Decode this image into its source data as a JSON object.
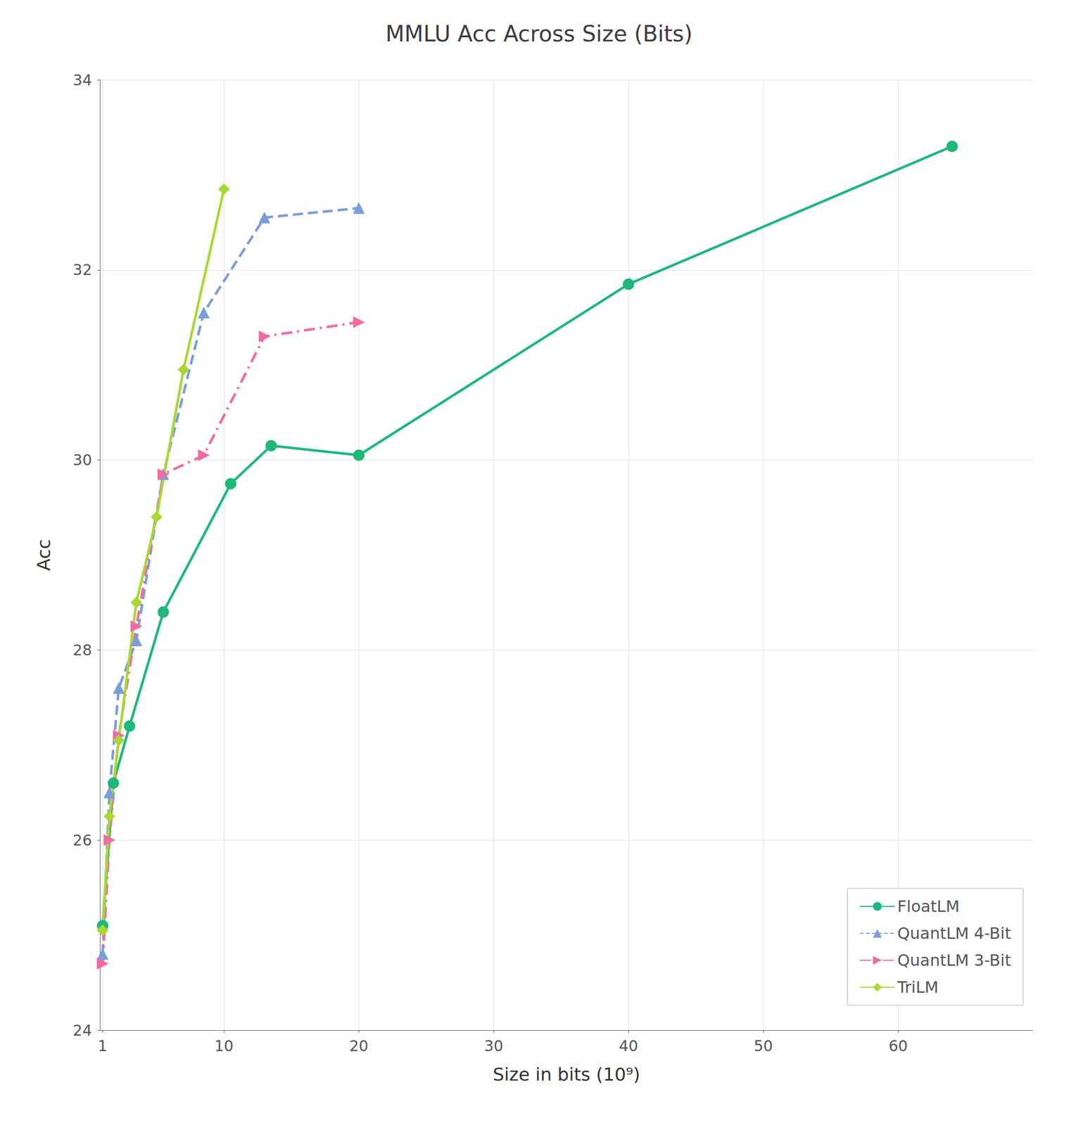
{
  "chart_data": {
    "type": "line",
    "title": "MMLU Acc Across Size (Bits)",
    "xlabel": "Size in bits (10⁹)",
    "ylabel": "Acc",
    "xlim": [
      0.8,
      70
    ],
    "ylim": [
      24,
      34
    ],
    "xticks": [
      1,
      10,
      20,
      30,
      40,
      50,
      60
    ],
    "yticks": [
      24,
      26,
      28,
      30,
      32,
      34
    ],
    "grid": true,
    "legend": "lower right",
    "series": [
      {
        "name": "FloatLM",
        "color": "#1db87a",
        "line_style": "solid",
        "marker": "circle",
        "x": [
          1.0,
          1.8,
          3.0,
          5.5,
          10.5,
          13.5,
          20.0,
          40.0,
          64.0
        ],
        "values": [
          25.1,
          26.6,
          27.2,
          28.4,
          29.75,
          30.15,
          30.05,
          31.85,
          33.3
        ]
      },
      {
        "name": "QuantLM 4-Bit",
        "color": "#7b9ed9",
        "line_style": "dashed",
        "marker": "triangle",
        "x": [
          1.0,
          1.5,
          2.2,
          3.5,
          5.5,
          8.5,
          13.0,
          20.0
        ],
        "values": [
          24.8,
          26.5,
          27.6,
          28.1,
          29.85,
          31.55,
          32.55,
          32.65
        ]
      },
      {
        "name": "QuantLM 3-Bit",
        "color": "#f06ca0",
        "line_style": "dashdot",
        "marker": "triangle-right",
        "x": [
          1.0,
          1.5,
          2.2,
          3.5,
          5.5,
          8.5,
          13.0,
          20.0
        ],
        "values": [
          24.7,
          26.0,
          27.1,
          28.25,
          29.85,
          30.05,
          31.3,
          31.45
        ]
      },
      {
        "name": "TriLM",
        "color": "#a8d832",
        "line_style": "solid",
        "marker": "diamond",
        "x": [
          1.0,
          1.5,
          2.2,
          3.5,
          5.0,
          7.0,
          10.0
        ],
        "values": [
          25.05,
          26.25,
          27.05,
          28.5,
          29.4,
          30.95,
          32.85
        ]
      }
    ]
  }
}
